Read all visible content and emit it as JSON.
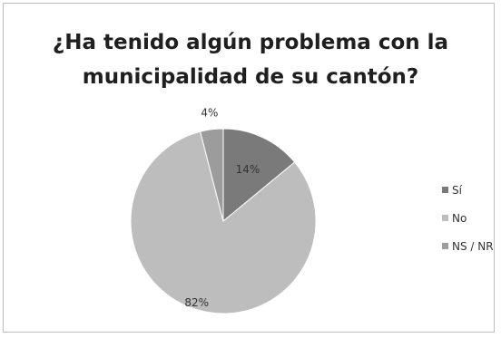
{
  "chart_data": {
    "type": "pie",
    "title": "¿Ha tenido algún problema con la\nmunicipalidad de su cantón?",
    "categories": [
      "Sí",
      "No",
      "NS / NR"
    ],
    "values": [
      14,
      82,
      4
    ],
    "value_labels": [
      "14%",
      "82%",
      "4%"
    ],
    "colors": [
      "#7a7a7a",
      "#bdbdbd",
      "#9c9c9c"
    ],
    "legend_position": "right"
  }
}
